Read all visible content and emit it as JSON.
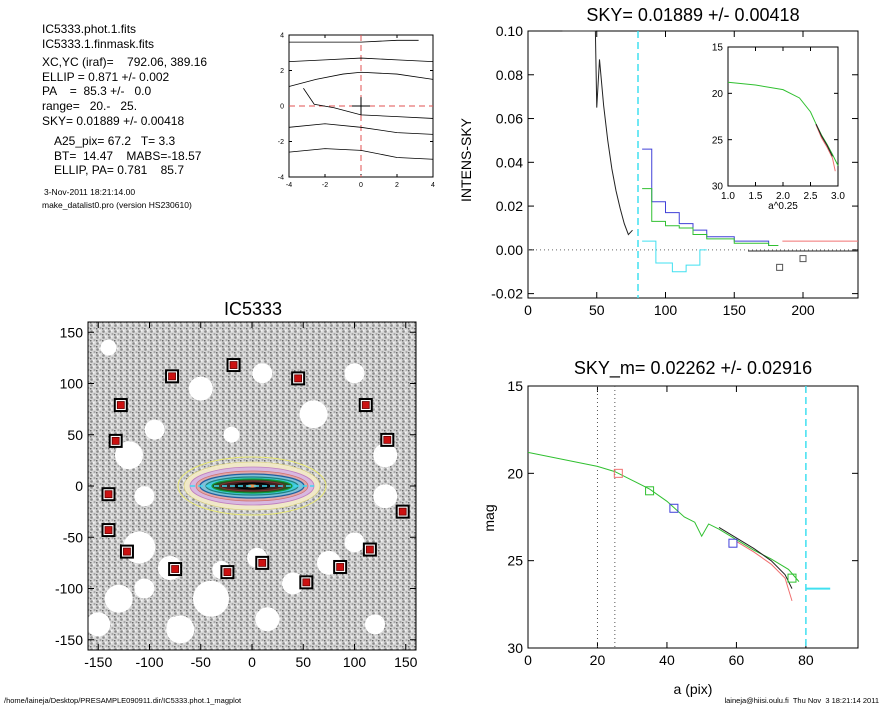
{
  "info": {
    "lines": [
      "IC5333.phot.1.fits",
      "IC5333.1.finmask.fits",
      "XC,YC (iraf)=    792.06, 389.16",
      "ELLIP = 0.871 +/- 0.002",
      "PA    =  85.3 +/-   0.0",
      "range=   20.-   25.",
      "SKY= 0.01889 +/- 0.00418",
      "A25_pix= 67.2   T= 3.3",
      "BT=  14.47    MABS=-18.57",
      "ELLIP, PA= 0.781    85.7"
    ],
    "date": "3-Nov-2011 18:21:14.00",
    "program": "make_datalist0.pro (version HS230610)"
  },
  "footer": {
    "path": "/home/laineja/Desktop/PRESAMPLE090911.dir/IC5333.phot.1_magplot",
    "user": "laineja@hiisi.oulu.fi  Thu Nov  3 18:21:14 2011"
  },
  "chart_data": [
    {
      "id": "isophote-panel",
      "type": "line",
      "title": "",
      "xlabel": "",
      "ylabel": "",
      "xlim": [
        -4,
        4
      ],
      "ylim": [
        -4,
        4
      ],
      "xticks": [
        "-4",
        "-2",
        "0",
        "2",
        "4"
      ],
      "yticks": [
        "-4",
        "-2",
        "0",
        "2",
        "4"
      ],
      "colors": {
        "lines": "#000000",
        "guide": "#e05050"
      },
      "series": [
        {
          "x": [
            -4,
            -2,
            0,
            2,
            3.2
          ],
          "y": [
            3.6,
            3.6,
            3.6,
            3.7,
            3.7
          ]
        },
        {
          "x": [
            -4,
            -2,
            0,
            2,
            4
          ],
          "y": [
            2.5,
            2.6,
            2.7,
            2.6,
            2.5
          ]
        },
        {
          "x": [
            -4,
            -2.5,
            -1,
            0,
            2,
            4
          ],
          "y": [
            1.1,
            1.5,
            1.8,
            1.9,
            1.8,
            1.5
          ]
        },
        {
          "x": [
            -3.2,
            -2.6,
            -1.5,
            0,
            2,
            4
          ],
          "y": [
            1.0,
            0.1,
            -0.1,
            -0.5,
            -0.6,
            -0.7
          ]
        },
        {
          "x": [
            -4,
            -2,
            0,
            2,
            4
          ],
          "y": [
            -1.2,
            -1.0,
            -1.2,
            -1.5,
            -1.6
          ]
        },
        {
          "x": [
            -4,
            -2,
            0,
            2,
            4
          ],
          "y": [
            -2.6,
            -2.4,
            -2.5,
            -2.9,
            -3.0
          ]
        }
      ]
    },
    {
      "id": "sky-profile",
      "type": "line",
      "title": "SKY= 0.01889 +/- 0.00418",
      "xlabel": "",
      "ylabel": "INTENS-SKY",
      "xlim": [
        0,
        240
      ],
      "ylim": [
        -0.022,
        0.1
      ],
      "xticks": [
        "0",
        "50",
        "100",
        "150",
        "200"
      ],
      "yticks": [
        "-0.02",
        "0.00",
        "0.02",
        "0.04",
        "0.06",
        "0.08",
        "0.10"
      ],
      "sky_radius": 80,
      "colors": {
        "profile": "#222222",
        "blue": "#4040d8",
        "green": "#30c030",
        "cyan": "#40e0f0",
        "red": "#f07070",
        "zero": "#666666"
      },
      "series": [
        {
          "name": "",
          "color": "profile",
          "x": [
            25,
            30,
            35,
            40,
            44,
            47,
            48,
            49,
            50,
            52,
            55,
            58,
            61,
            64,
            67,
            70,
            73,
            76
          ],
          "y": [
            0.1,
            0.1,
            0.1,
            0.1,
            0.1,
            0.1,
            0.1,
            0.1,
            0.065,
            0.087,
            0.066,
            0.05,
            0.037,
            0.027,
            0.019,
            0.012,
            0.007,
            0.009
          ]
        },
        {
          "name": "",
          "color": "blue",
          "step": true,
          "x": [
            83,
            90,
            100,
            110,
            120,
            130,
            150,
            175
          ],
          "y": [
            0.046,
            0.022,
            0.017,
            0.012,
            0.009,
            0.006,
            0.004,
            0.002
          ]
        },
        {
          "name": "",
          "color": "green",
          "step": true,
          "x": [
            83,
            90,
            100,
            110,
            120,
            130,
            150,
            175
          ],
          "y": [
            0.028,
            0.013,
            0.011,
            0.01,
            0.007,
            0.005,
            0.003,
            0.002
          ]
        },
        {
          "name": "",
          "color": "cyan",
          "step": true,
          "x": [
            83,
            88,
            93,
            99,
            105,
            115,
            125
          ],
          "y": [
            0.004,
            0.004,
            -0.006,
            -0.006,
            -0.01,
            -0.007,
            0.0
          ]
        },
        {
          "name": "",
          "color": "red",
          "step": false,
          "x": [
            185,
            240
          ],
          "y": [
            0.004,
            0.004
          ]
        },
        {
          "name": "",
          "color": "profile",
          "step": false,
          "x": [
            160,
            240
          ],
          "y": [
            -0.0005,
            -0.0005
          ]
        }
      ],
      "markers": [
        {
          "x": 183,
          "y": -0.008
        },
        {
          "x": 200,
          "y": -0.004
        }
      ]
    },
    {
      "id": "sky-inset",
      "type": "line",
      "title": "",
      "xlabel": "a^0.25",
      "ylabel": "",
      "xlim": [
        1.0,
        3.0
      ],
      "ylim": [
        15,
        30
      ],
      "xticks": [
        "1.0",
        "1.5",
        "2.0",
        "2.5",
        "3.0"
      ],
      "yticks": [
        "15",
        "20",
        "25",
        "30"
      ],
      "series": [
        {
          "name": "",
          "color": "green",
          "x": [
            1.0,
            1.5,
            2.0,
            2.3,
            2.5,
            2.6,
            2.7,
            2.8,
            2.9,
            3.0
          ],
          "y": [
            18.8,
            19.1,
            19.6,
            20.5,
            22.0,
            23.3,
            24.5,
            25.5,
            26.6,
            27.8
          ]
        },
        {
          "name": "",
          "color": "red",
          "x": [
            2.6,
            2.7,
            2.8,
            2.9,
            2.95
          ],
          "y": [
            23.4,
            24.8,
            25.8,
            27.0,
            28.4
          ]
        },
        {
          "name": "",
          "color": "profile",
          "x": [
            2.6,
            2.7,
            2.8,
            2.9
          ],
          "y": [
            23.3,
            24.6,
            25.6,
            26.8
          ]
        }
      ]
    },
    {
      "id": "image-panel",
      "type": "scatter",
      "title": "IC5333",
      "xlabel": "",
      "ylabel": "",
      "xlim": [
        -160,
        160
      ],
      "ylim": [
        -160,
        160
      ],
      "xticks": [
        "-150",
        "-100",
        "-50",
        "0",
        "50",
        "100",
        "150"
      ],
      "yticks": [
        "-150",
        "-100",
        "-50",
        "0",
        "50",
        "100",
        "150"
      ],
      "colors": {
        "marker_outer": "#000000",
        "marker_inner": "#cc1111",
        "ellipse": "#e8e870"
      },
      "markers": [
        {
          "x": -18,
          "y": 118
        },
        {
          "x": -78,
          "y": 107
        },
        {
          "x": 45,
          "y": 105
        },
        {
          "x": -128,
          "y": 79
        },
        {
          "x": 111,
          "y": 79
        },
        {
          "x": -133,
          "y": 44
        },
        {
          "x": 132,
          "y": 45
        },
        {
          "x": -140,
          "y": -8
        },
        {
          "x": 147,
          "y": -25
        },
        {
          "x": -140,
          "y": -43
        },
        {
          "x": -122,
          "y": -64
        },
        {
          "x": 115,
          "y": -62
        },
        {
          "x": -75,
          "y": -81
        },
        {
          "x": -24,
          "y": -84
        },
        {
          "x": 10,
          "y": -75
        },
        {
          "x": 86,
          "y": -79
        },
        {
          "x": 53,
          "y": -94
        }
      ]
    },
    {
      "id": "mag-profile",
      "type": "line",
      "title": "SKY_m=  0.02262 +/- 0.02916",
      "xlabel": "a (pix)",
      "ylabel": "mag",
      "xlim": [
        0,
        95
      ],
      "ylim": [
        15,
        30
      ],
      "xticks": [
        "0",
        "20",
        "40",
        "60",
        "80"
      ],
      "yticks": [
        "15",
        "20",
        "25",
        "30"
      ],
      "range_lines": [
        20,
        25
      ],
      "sky_radius": 80,
      "series": [
        {
          "name": "",
          "color": "green",
          "x": [
            0,
            5,
            10,
            15,
            20,
            25,
            30,
            35,
            40,
            45,
            48,
            50,
            52,
            55,
            60,
            65,
            70,
            75,
            78
          ],
          "y": [
            18.8,
            19.0,
            19.2,
            19.4,
            19.6,
            19.9,
            20.4,
            20.9,
            21.6,
            22.5,
            22.8,
            23.6,
            22.9,
            23.2,
            23.8,
            24.4,
            24.9,
            25.5,
            26.2
          ]
        },
        {
          "name": "",
          "color": "red",
          "x": [
            60,
            65,
            70,
            74,
            76
          ],
          "y": [
            23.9,
            24.5,
            25.2,
            26.0,
            27.3
          ]
        },
        {
          "name": "",
          "color": "profile",
          "x": [
            55,
            60,
            65,
            70,
            74,
            76
          ],
          "y": [
            23.1,
            23.7,
            24.3,
            25.0,
            25.8,
            26.6
          ]
        },
        {
          "name": "",
          "color": "cyan",
          "x": [
            80,
            87
          ],
          "y": [
            26.6,
            26.6
          ]
        }
      ],
      "markers": [
        {
          "x": 26,
          "y": 20.0,
          "color": "red"
        },
        {
          "x": 35,
          "y": 21.0,
          "color": "green"
        },
        {
          "x": 42,
          "y": 22.0,
          "color": "blue"
        },
        {
          "x": 59,
          "y": 24.0,
          "color": "blue"
        },
        {
          "x": 76,
          "y": 26.0,
          "color": "green"
        }
      ]
    }
  ]
}
